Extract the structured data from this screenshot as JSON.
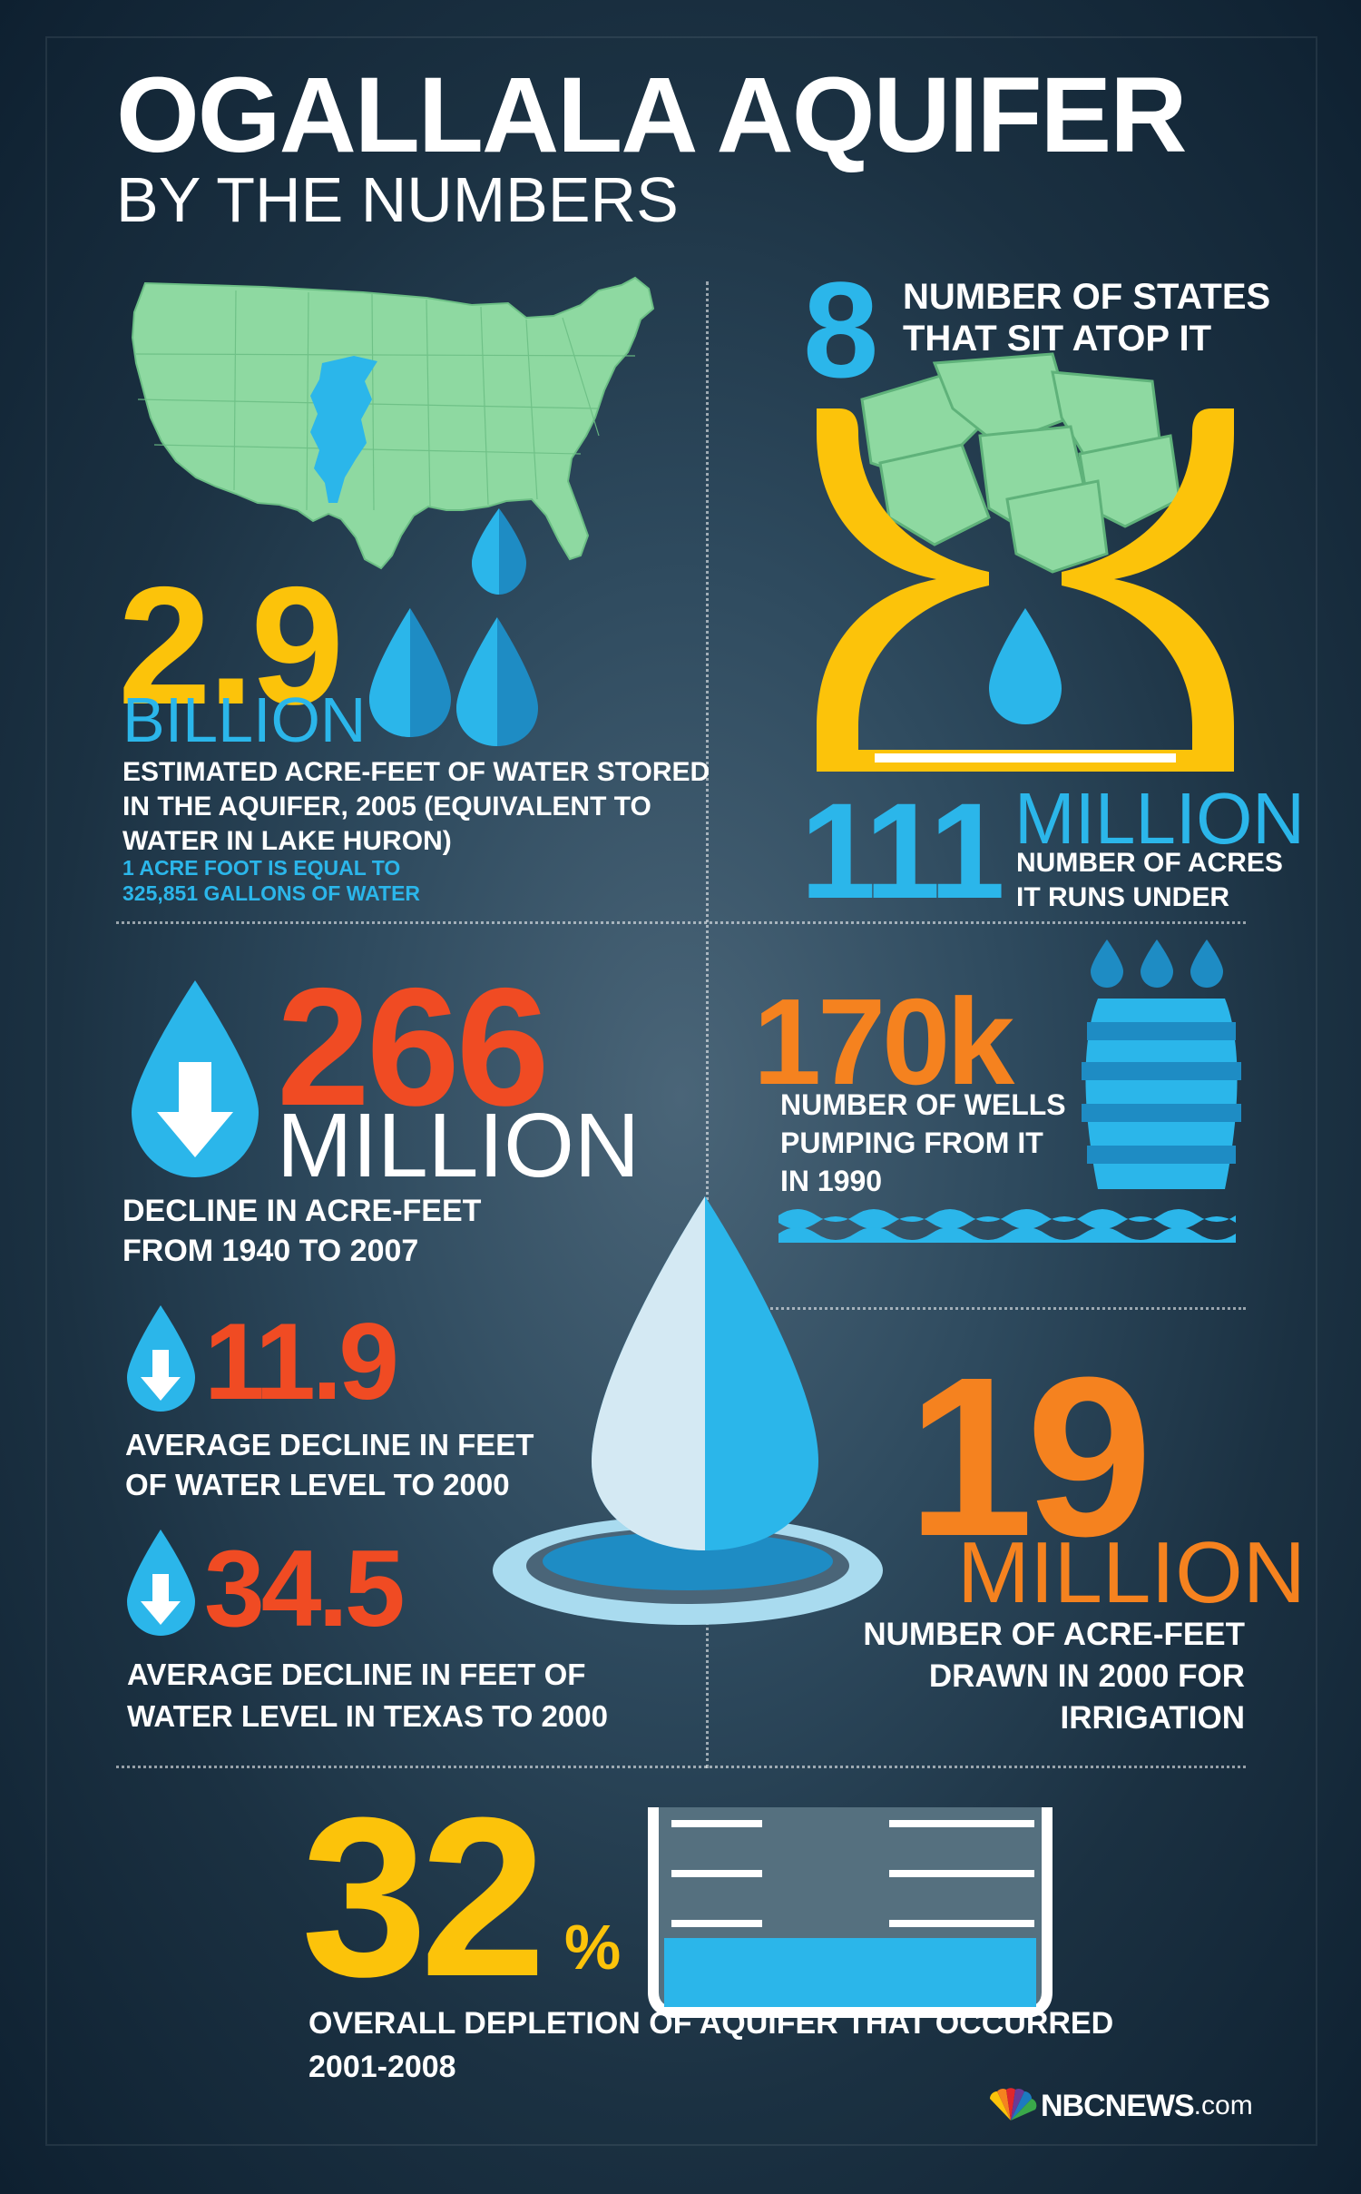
{
  "title": "OGALLALA AQUIFER",
  "subtitle": "BY THE NUMBERS",
  "colors": {
    "yellow": "#fcc30a",
    "blue": "#2bb6ea",
    "red": "#f04b23",
    "orange": "#f5821f",
    "map_green": "#8ed9a1",
    "background": "#2e4a5e"
  },
  "icons": {
    "map": "us-map-with-aquifer",
    "hourglass": "hourglass-with-states",
    "drop": "water-drop",
    "drop_down": "water-drop-down-arrow",
    "barrel": "water-barrel",
    "splash": "water-drop-splash",
    "tank": "water-tank",
    "logo": "nbc-peacock"
  },
  "stats": {
    "water_stored": {
      "value": "2.9",
      "unit": "BILLION",
      "label_line1": "ESTIMATED ACRE-FEET OF WATER STORED",
      "label_line2": "IN THE AQUIFER, 2005 (EQUIVALENT TO",
      "label_line3": "WATER IN LAKE HURON)",
      "note_line1": "1 ACRE FOOT IS EQUAL TO",
      "note_line2": "325,851 GALLONS OF WATER"
    },
    "states": {
      "value": "8",
      "label_line1": "NUMBER OF STATES",
      "label_line2": "THAT SIT ATOP IT"
    },
    "acres": {
      "value": "111",
      "unit": "MILLION",
      "label_line1": "NUMBER OF ACRES",
      "label_line2": "IT RUNS UNDER"
    },
    "decline_total": {
      "value": "266",
      "unit": "MILLION",
      "label_line1": "DECLINE IN ACRE-FEET",
      "label_line2": "FROM 1940 TO 2007"
    },
    "wells": {
      "value": "170k",
      "label_line1": "NUMBER OF WELLS",
      "label_line2": "PUMPING FROM IT",
      "label_line3": "IN 1990"
    },
    "decline_avg": {
      "value": "11.9",
      "label_line1": "AVERAGE DECLINE IN FEET",
      "label_line2": "OF WATER LEVEL TO 2000"
    },
    "decline_texas": {
      "value": "34.5",
      "label_line1": "AVERAGE DECLINE IN FEET OF",
      "label_line2": "WATER LEVEL IN TEXAS TO 2000"
    },
    "irrigation": {
      "value": "19",
      "unit": "MILLION",
      "label_line1": "NUMBER OF ACRE-FEET",
      "label_line2": "DRAWN IN 2000 FOR",
      "label_line3": "IRRIGATION"
    },
    "depletion": {
      "value": "32",
      "unit": "%",
      "label_line1": "OVERALL DEPLETION OF AQUIFER THAT OCCURRED",
      "label_line2": "2001-2008",
      "fill_fraction": 0.32
    }
  },
  "footer": {
    "brand": "NBCNEWS",
    "suffix": ".com"
  }
}
